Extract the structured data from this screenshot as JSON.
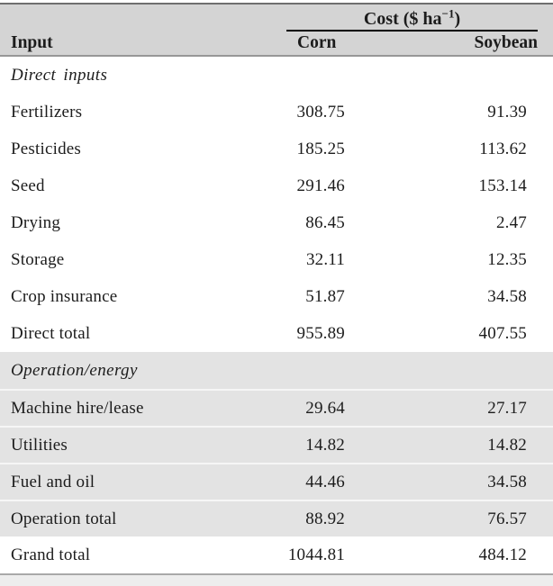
{
  "colors": {
    "header_bg": "#d4d4d4",
    "section_bg": "#e3e3e3",
    "cost_rule": "#000000",
    "top_rule": "#6e6e6e",
    "bottom_rule": "#a9a9a9",
    "text": "#1c1c1c"
  },
  "table": {
    "header": {
      "input": "Input",
      "cost": {
        "prefix": "Cost ($ ha",
        "sup": "−1",
        "suffix": ")"
      },
      "corn": "Corn",
      "soybean": "Soybean"
    },
    "rows": [
      {
        "type": "section",
        "label": "Direct inputs"
      },
      {
        "type": "data",
        "label": "Fertilizers",
        "corn": "308.75",
        "soybean": "91.39"
      },
      {
        "type": "data",
        "label": "Pesticides",
        "corn": "185.25",
        "soybean": "113.62"
      },
      {
        "type": "data",
        "label": "Seed",
        "corn": "291.46",
        "soybean": "153.14"
      },
      {
        "type": "data",
        "label": "Drying",
        "corn": "86.45",
        "soybean": "2.47"
      },
      {
        "type": "data",
        "label": "Storage",
        "corn": "32.11",
        "soybean": "12.35"
      },
      {
        "type": "data",
        "label": "Crop insurance",
        "corn": "51.87",
        "soybean": "34.58"
      },
      {
        "type": "data",
        "label": "Direct total",
        "corn": "955.89",
        "soybean": "407.55"
      },
      {
        "type": "section",
        "label": "Operation/energy"
      },
      {
        "type": "data",
        "label": "Machine hire/lease",
        "corn": "29.64",
        "soybean": "27.17"
      },
      {
        "type": "data",
        "label": "Utilities",
        "corn": "14.82",
        "soybean": "14.82"
      },
      {
        "type": "data",
        "label": "Fuel and oil",
        "corn": "44.46",
        "soybean": "34.58"
      },
      {
        "type": "data",
        "label": "Operation total",
        "corn": "88.92",
        "soybean": "76.57"
      },
      {
        "type": "grand",
        "label": "Grand total",
        "corn": "1044.81",
        "soybean": "484.12"
      }
    ]
  }
}
